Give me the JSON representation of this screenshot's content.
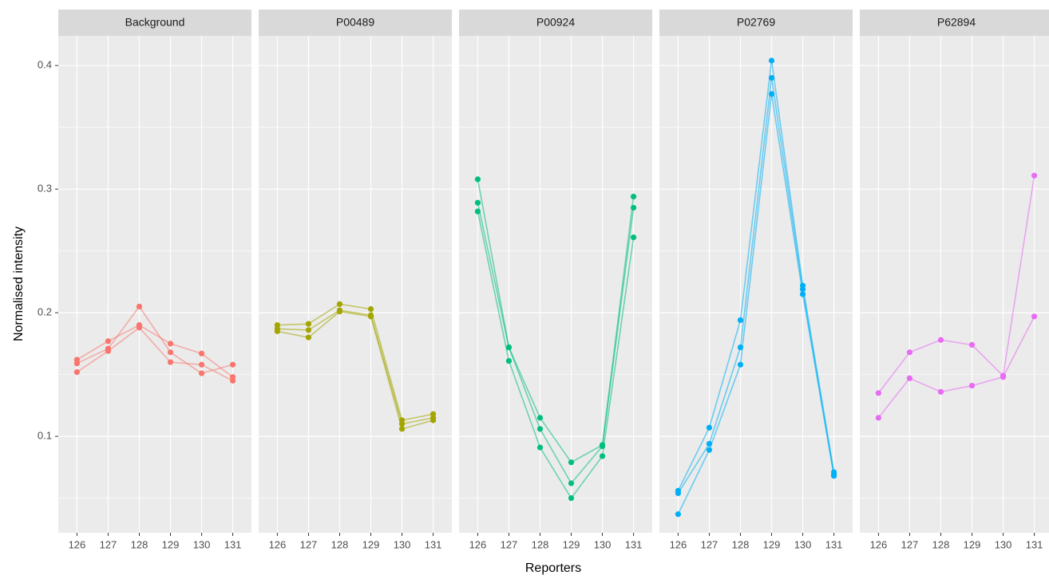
{
  "axes": {
    "xlabel": "Reporters",
    "ylabel": "Normalised intensity"
  },
  "chart_data": [
    {
      "type": "line",
      "title": "Background",
      "categories": [
        "126",
        "127",
        "128",
        "129",
        "130",
        "131"
      ],
      "ylim": [
        0.022,
        0.424
      ],
      "yticks": [
        0.1,
        0.2,
        0.3,
        0.4
      ],
      "grid": true,
      "series": [
        {
          "color": "#F8766D",
          "values": [
            0.162,
            0.177,
            0.19,
            0.175,
            0.167,
            0.148
          ]
        },
        {
          "color": "#F8766D",
          "values": [
            0.159,
            0.171,
            0.205,
            0.168,
            0.151,
            0.158
          ]
        },
        {
          "color": "#F8766D",
          "values": [
            0.152,
            0.169,
            0.188,
            0.16,
            0.158,
            0.145
          ]
        }
      ]
    },
    {
      "type": "line",
      "title": "P00489",
      "categories": [
        "126",
        "127",
        "128",
        "129",
        "130",
        "131"
      ],
      "ylim": [
        0.022,
        0.424
      ],
      "yticks": [
        0.1,
        0.2,
        0.3,
        0.4
      ],
      "grid": true,
      "series": [
        {
          "color": "#A3A500",
          "values": [
            0.19,
            0.191,
            0.207,
            0.203,
            0.113,
            0.118
          ]
        },
        {
          "color": "#A3A500",
          "values": [
            0.187,
            0.186,
            0.202,
            0.198,
            0.11,
            0.115
          ]
        },
        {
          "color": "#A3A500",
          "values": [
            0.185,
            0.18,
            0.201,
            0.197,
            0.106,
            0.113
          ]
        }
      ]
    },
    {
      "type": "line",
      "title": "P00924",
      "categories": [
        "126",
        "127",
        "128",
        "129",
        "130",
        "131"
      ],
      "ylim": [
        0.022,
        0.424
      ],
      "yticks": [
        0.1,
        0.2,
        0.3,
        0.4
      ],
      "grid": true,
      "series": [
        {
          "color": "#00BF7D",
          "values": [
            0.308,
            0.172,
            0.115,
            0.079,
            0.093,
            0.294
          ]
        },
        {
          "color": "#00BF7D",
          "values": [
            0.289,
            0.172,
            0.106,
            0.062,
            0.092,
            0.285
          ]
        },
        {
          "color": "#00BF7D",
          "values": [
            0.282,
            0.161,
            0.091,
            0.05,
            0.084,
            0.261
          ]
        }
      ]
    },
    {
      "type": "line",
      "title": "P02769",
      "categories": [
        "126",
        "127",
        "128",
        "129",
        "130",
        "131"
      ],
      "ylim": [
        0.022,
        0.424
      ],
      "yticks": [
        0.1,
        0.2,
        0.3,
        0.4
      ],
      "grid": true,
      "series": [
        {
          "color": "#00B0F6",
          "values": [
            0.056,
            0.107,
            0.194,
            0.404,
            0.222,
            0.071
          ]
        },
        {
          "color": "#00B0F6",
          "values": [
            0.054,
            0.094,
            0.172,
            0.39,
            0.219,
            0.069
          ]
        },
        {
          "color": "#00B0F6",
          "values": [
            0.037,
            0.089,
            0.158,
            0.377,
            0.215,
            0.068
          ]
        }
      ]
    },
    {
      "type": "line",
      "title": "P62894",
      "categories": [
        "126",
        "127",
        "128",
        "129",
        "130",
        "131"
      ],
      "ylim": [
        0.022,
        0.424
      ],
      "yticks": [
        0.1,
        0.2,
        0.3,
        0.4
      ],
      "grid": true,
      "series": [
        {
          "color": "#E76BF3",
          "values": [
            0.135,
            0.168,
            0.178,
            0.174,
            0.149,
            0.311
          ]
        },
        {
          "color": "#E76BF3",
          "values": [
            0.115,
            0.147,
            0.136,
            0.141,
            0.148,
            0.197
          ]
        }
      ]
    }
  ]
}
